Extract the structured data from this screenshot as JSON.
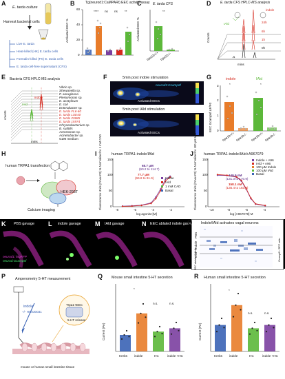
{
  "panelA": {
    "letter": "A",
    "culture": "E. tarda culture",
    "harvest": "Harvest bacterial cells",
    "items": [
      "Live E. tarda",
      "Heat-killed (HK) E. tarda cells",
      "Formalin-killed (FK) E. tarda cells",
      "E. tarda cell-free supernatant (CFS)"
    ]
  },
  "panelB": {
    "letter": "B",
    "title": "Tg(neurod1:CaMPARI) EEC activity assay",
    "ylabel": "Activated EEC %",
    "sig": [
      "****",
      "ns",
      "ns",
      "**"
    ],
    "ticks": [
      "0",
      "20",
      "40",
      "60"
    ]
  },
  "panelC": {
    "letter": "C",
    "title": "E. tarda CFS",
    "ylabel": "Activated EEC %",
    "sig": "**",
    "ticks": [
      "0",
      "20",
      "40",
      "60"
    ],
    "xcats": [
      "trpa1b+/+",
      "trpa1b-/-"
    ]
  },
  "panelD": {
    "letter": "D",
    "title": "E. tarda CFS HPLC-MS analysis",
    "ylabel": "Counts",
    "xlabel": "mins",
    "traces": [
      "24h",
      "6h",
      "1h",
      "0h"
    ],
    "compounds": [
      "IAld",
      "indole"
    ]
  },
  "panelE": {
    "letter": "E",
    "title": "Bacteria CFS HPLC-MS analysis",
    "ylabel": "counts",
    "xlabel": "mins",
    "markers": [
      "IAld",
      "indole"
    ],
    "species": [
      "Vibrio sp.",
      "Shewanella sp.",
      "P. aeruginosa",
      "Plesiomonas sp.",
      "E. acetylicum",
      "E. coli",
      "Enterobacter sp.",
      "E. tarda FL6-60",
      "E. tarda LSE40",
      "E. tarda 23685",
      "E. tarda 15974",
      "Chryseobacterium sp.",
      "B. subtilis",
      "Aeromonas sp.",
      "Acinetobacter sp.",
      "GZM medium"
    ]
  },
  "panelF": {
    "letter": "F",
    "top_title": "5min post indole stimulation",
    "bottom_title": "5min post IAld stimulation",
    "reporter": "neurod1:Gcamp6f",
    "arrow_label": "Activated EECs"
  },
  "panelG": {
    "letter": "G",
    "headers": [
      "indole",
      "IAld"
    ],
    "ylabel": "EEC Gcamp6f ΔF/F0",
    "sig": [
      "*",
      "*"
    ],
    "ticks": [
      "0",
      "1",
      "2",
      "3"
    ],
    "xcats": [
      "trpa1b+/+",
      "trpa1b-/-",
      "trpa1b+/+",
      "trpa1b-/-"
    ]
  },
  "panelH": {
    "letter": "H",
    "transfection": "human TRPA1 transfection",
    "cell": "HEK-293T",
    "readout": "Calcium imaging"
  },
  "panelI": {
    "letter": "I",
    "title": "human TRPA1-indole/IAld",
    "ylabel": "Fluorescence Units (Fmax-F0) % Normalized to 1 mM CAD",
    "xlabel": "log agonist [M]",
    "legend": [
      "Indole",
      "IAld",
      "1 mM CAD",
      "Basal"
    ],
    "ec_indole": "68.7 μM",
    "ci_indole": "(60.2 to 114.7)",
    "ec_iald": "77.7 μM",
    "ci_iald": "(66.8 to 91.9)",
    "xticks": [
      "-8",
      "-6",
      "-4",
      "-2"
    ],
    "yticks": [
      "0",
      "50",
      "100",
      "150"
    ],
    "chart_data": {
      "type": "line",
      "series": [
        {
          "name": "Indole",
          "x": [
            -8,
            -7,
            -6,
            -5,
            -4.5,
            -4,
            -3.5,
            -3
          ],
          "y": [
            2,
            3,
            5,
            12,
            30,
            55,
            85,
            95
          ]
        },
        {
          "name": "IAld",
          "x": [
            -8,
            -7,
            -6,
            -5,
            -4.5,
            -4,
            -3.5,
            -3
          ],
          "y": [
            1,
            2,
            4,
            10,
            25,
            50,
            80,
            92
          ]
        }
      ]
    }
  },
  "panelJ": {
    "letter": "J",
    "title": "human TRPA1-indole/IAld+A967079",
    "ylabel": "Fluorescence Units (Fmax-F0) % Normalized to 100 μM IAld",
    "xlabel": "log [A967079] M",
    "legend": [
      "Indole + A96",
      "IAld + A96",
      "100 μM Indole",
      "100 μM IAld",
      "Basal"
    ],
    "ic_indole": "149.9 nM",
    "ci_indole": "(131.3 to 170.9)",
    "ic_iald": "158.1 nM",
    "ci_iald": "(135.4 to 183.5)",
    "xticks": [
      "-10",
      "-8",
      "-6",
      "-4"
    ],
    "yticks": [
      "0",
      "50",
      "100",
      "150"
    ],
    "chart_data": {
      "type": "line",
      "series": [
        {
          "name": "Indole + A96",
          "x": [
            -10,
            -9,
            -8,
            -7.5,
            -7,
            -6.5,
            -6,
            -5
          ],
          "y": [
            98,
            97,
            92,
            80,
            55,
            25,
            8,
            3
          ]
        },
        {
          "name": "IAld + A96",
          "x": [
            -10,
            -9,
            -8,
            -7.5,
            -7,
            -6.5,
            -6,
            -5
          ],
          "y": [
            100,
            98,
            93,
            82,
            57,
            27,
            9,
            4
          ]
        }
      ]
    }
  },
  "panelsKN": {
    "letters": [
      "K",
      "L",
      "M",
      "N"
    ],
    "titles": [
      "PBS gavage",
      "indole gavage",
      "IAld gavage",
      "EEC ablated indole gavage"
    ],
    "genotype": "neurod1:TagRFP",
    "reporter": "neurod:Gcamp6f"
  },
  "panelO": {
    "letter": "O",
    "title": "Indole/IAld activates vagal neurons",
    "rows": [
      "PBS",
      "indole",
      "IAld",
      "EEC ablated indole"
    ],
    "scale": "Gcamp6f / RFP ratio"
  },
  "panelP": {
    "letter": "P",
    "method": "Amperometry 5-HT measurement",
    "treatment": "indole",
    "inhibitor": "+/- HC030031",
    "receptor": "Trpa1+EEC",
    "release": "5-HT release",
    "tissue": "mouse or human small intestine tissue"
  },
  "panelQ": {
    "letter": "Q",
    "title": "Mouse small intestine 5-HT secretion",
    "ylabel": "Current (PA)",
    "sig": [
      "*",
      "n.s.",
      "n.s."
    ],
    "xcats": [
      "Krebs",
      "indole",
      "HC",
      "indole +HC"
    ],
    "chart_data": {
      "type": "bar",
      "categories": [
        "Krebs",
        "indole",
        "HC",
        "indole +HC"
      ],
      "values": [
        5,
        11.5,
        6,
        7
      ],
      "ylim": [
        0,
        20
      ]
    }
  },
  "panelR": {
    "letter": "R",
    "title": "Human small intestine 5-HT secretion",
    "ylabel": "Current (PA)",
    "sig": [
      "*",
      "n.s.",
      "n.s."
    ],
    "xcats": [
      "Krebs",
      "indole",
      "HC",
      "indole +HC"
    ],
    "chart_data": {
      "type": "bar",
      "categories": [
        "Krebs",
        "indole",
        "HC",
        "indole +HC"
      ],
      "values": [
        4,
        7,
        3.5,
        4
      ],
      "ylim": [
        0,
        10
      ]
    }
  },
  "colors": {
    "green": "#5cb83a",
    "orange": "#e87c2a",
    "red": "#d62a1e",
    "purple": "#7b3fa0",
    "blue": "#3a63b5"
  }
}
